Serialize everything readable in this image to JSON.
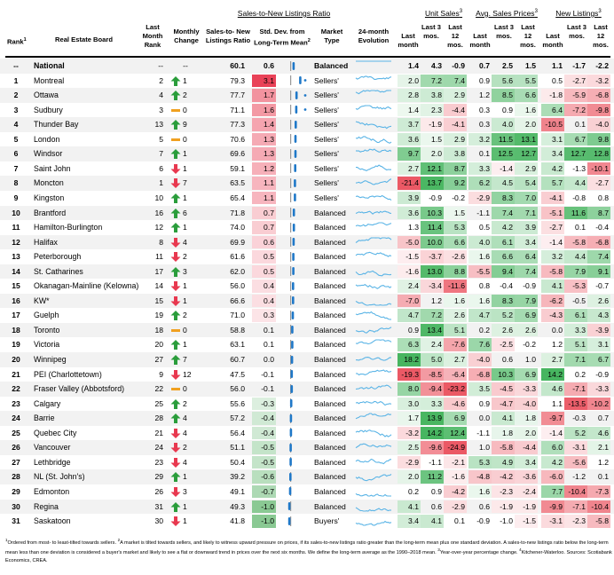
{
  "groups": {
    "ratio": "Sales-to-New Listings Ratio",
    "unit_sales": "Unit Sales",
    "unit_sales_note": "3",
    "prices": "Avg. Sales Prices",
    "prices_note": "3",
    "listings": "New Listings",
    "listings_note": "3"
  },
  "headers": {
    "rank": "Rank",
    "rank_note": "1",
    "board": "Real Estate Board",
    "last_month_rank": "Last Month Rank",
    "monthly_change": "Monthly Change",
    "snlr": "Sales-to- New Listings Ratio",
    "sd": "Std. Dev. from Long-Term Mean",
    "sd_note": "2",
    "market_type": "Market Type",
    "evolution": "24-month Evolution",
    "last_month": "Last month",
    "last3": "Last 3 mos.",
    "last12": "Last 12 mos."
  },
  "colors": {
    "red": "#e8384f",
    "green": "#2a9d3b",
    "orange": "#f0a020",
    "blue": "#1f78c8",
    "spark": "#5ab4e6",
    "pos_scale": "#27a844",
    "neg_scale": "#e83c4a"
  },
  "national": {
    "rank": "--",
    "board": "National",
    "lm_rank": "--",
    "change": "--",
    "ratio": "60.1",
    "sd": "0.6",
    "market": "Balanced",
    "us": [
      "1.4",
      "4.3",
      "-0.9"
    ],
    "pr": [
      "0.7",
      "2.5",
      "1.5"
    ],
    "nl": [
      "1.1",
      "-1.7",
      "-2.2"
    ]
  },
  "chart_data": {
    "type": "table",
    "columns": [
      "Rank",
      "Real Estate Board",
      "Last Month Rank",
      "Monthly Change",
      "Sales-to- New Listings Ratio",
      "Std. Dev. from Long-Term Mean",
      "Market Type",
      "Unit Sales Last month",
      "Unit Sales Last 3 mos.",
      "Unit Sales Last 12 mos.",
      "Avg. Sales Prices Last month",
      "Avg. Sales Prices Last 3 mos.",
      "Avg. Sales Prices Last 12 mos.",
      "New Listings Last month",
      "New Listings Last 3 mos.",
      "New Listings Last 12 mos."
    ],
    "rows": [
      {
        "rank": "1",
        "board": "Montreal",
        "lm": "2",
        "dir": "up",
        "chg": "1",
        "ratio": "79.3",
        "sd": "3.1",
        "market": "Sellers'",
        "us": [
          "2.0",
          "7.2",
          "7.4"
        ],
        "pr": [
          "0.9",
          "5.6",
          "5.5"
        ],
        "nl": [
          "0.5",
          "-2.7",
          "-3.2"
        ]
      },
      {
        "rank": "2",
        "board": "Ottawa",
        "lm": "4",
        "dir": "up",
        "chg": "2",
        "ratio": "77.7",
        "sd": "1.7",
        "market": "Sellers'",
        "us": [
          "2.8",
          "3.8",
          "2.9"
        ],
        "pr": [
          "1.2",
          "8.5",
          "6.6"
        ],
        "nl": [
          "-1.8",
          "-5.9",
          "-6.8"
        ]
      },
      {
        "rank": "3",
        "board": "Sudbury",
        "lm": "3",
        "dir": "flat",
        "chg": "0",
        "ratio": "71.1",
        "sd": "1.6",
        "market": "Sellers'",
        "us": [
          "1.4",
          "2.3",
          "-4.4"
        ],
        "pr": [
          "0.3",
          "0.9",
          "1.6"
        ],
        "nl": [
          "6.4",
          "-7.2",
          "-9.8"
        ]
      },
      {
        "rank": "4",
        "board": "Thunder Bay",
        "lm": "13",
        "dir": "up",
        "chg": "9",
        "ratio": "77.3",
        "sd": "1.4",
        "market": "Sellers'",
        "us": [
          "3.7",
          "-1.9",
          "-4.1"
        ],
        "pr": [
          "0.3",
          "4.0",
          "2.0"
        ],
        "nl": [
          "-10.5",
          "0.1",
          "-4.0"
        ]
      },
      {
        "rank": "5",
        "board": "London",
        "lm": "5",
        "dir": "flat",
        "chg": "0",
        "ratio": "70.6",
        "sd": "1.3",
        "market": "Sellers'",
        "us": [
          "3.6",
          "1.5",
          "2.9"
        ],
        "pr": [
          "3.2",
          "11.5",
          "13.1"
        ],
        "nl": [
          "3.1",
          "6.7",
          "9.8"
        ]
      },
      {
        "rank": "6",
        "board": "Windsor",
        "lm": "7",
        "dir": "up",
        "chg": "1",
        "ratio": "69.6",
        "sd": "1.3",
        "market": "Sellers'",
        "us": [
          "9.7",
          "2.0",
          "3.8"
        ],
        "pr": [
          "0.1",
          "12.5",
          "12.7"
        ],
        "nl": [
          "3.4",
          "12.7",
          "12.8"
        ]
      },
      {
        "rank": "7",
        "board": "Saint John",
        "lm": "6",
        "dir": "down",
        "chg": "1",
        "ratio": "59.1",
        "sd": "1.2",
        "market": "Sellers'",
        "us": [
          "2.7",
          "12.1",
          "8.7"
        ],
        "pr": [
          "3.3",
          "-1.4",
          "2.9"
        ],
        "nl": [
          "4.2",
          "-1.3",
          "-10.1"
        ]
      },
      {
        "rank": "8",
        "board": "Moncton",
        "lm": "1",
        "dir": "down",
        "chg": "7",
        "ratio": "63.5",
        "sd": "1.1",
        "market": "Sellers'",
        "us": [
          "-21.4",
          "13.7",
          "9.2"
        ],
        "pr": [
          "6.2",
          "4.5",
          "5.4"
        ],
        "nl": [
          "5.7",
          "4.4",
          "-2.7"
        ]
      },
      {
        "rank": "9",
        "board": "Kingston",
        "lm": "10",
        "dir": "up",
        "chg": "1",
        "ratio": "65.4",
        "sd": "1.1",
        "market": "Sellers'",
        "us": [
          "3.9",
          "-0.9",
          "-0.2"
        ],
        "pr": [
          "-2.9",
          "8.3",
          "7.0"
        ],
        "nl": [
          "-4.1",
          "-0.8",
          "0.8"
        ]
      },
      {
        "rank": "10",
        "board": "Brantford",
        "lm": "16",
        "dir": "up",
        "chg": "6",
        "ratio": "71.8",
        "sd": "0.7",
        "market": "Balanced",
        "us": [
          "3.6",
          "10.3",
          "1.5"
        ],
        "pr": [
          "-1.1",
          "7.4",
          "7.1"
        ],
        "nl": [
          "-5.1",
          "11.6",
          "8.7"
        ]
      },
      {
        "rank": "11",
        "board": "Hamilton-Burlington",
        "lm": "12",
        "dir": "up",
        "chg": "1",
        "ratio": "74.0",
        "sd": "0.7",
        "market": "Balanced",
        "us": [
          "1.3",
          "11.4",
          "5.3"
        ],
        "pr": [
          "0.5",
          "4.2",
          "3.9"
        ],
        "nl": [
          "-2.7",
          "0.1",
          "-0.4"
        ]
      },
      {
        "rank": "12",
        "board": "Halifax",
        "lm": "8",
        "dir": "down",
        "chg": "4",
        "ratio": "69.9",
        "sd": "0.6",
        "market": "Balanced",
        "us": [
          "-5.0",
          "10.0",
          "6.6"
        ],
        "pr": [
          "4.0",
          "6.1",
          "3.4"
        ],
        "nl": [
          "-1.4",
          "-5.8",
          "-6.8"
        ]
      },
      {
        "rank": "13",
        "board": "Peterborough",
        "lm": "11",
        "dir": "down",
        "chg": "2",
        "ratio": "61.6",
        "sd": "0.5",
        "market": "Balanced",
        "us": [
          "-1.5",
          "-3.7",
          "-2.6"
        ],
        "pr": [
          "1.6",
          "6.6",
          "6.4"
        ],
        "nl": [
          "3.2",
          "4.4",
          "7.4"
        ]
      },
      {
        "rank": "14",
        "board": "St. Catharines",
        "lm": "17",
        "dir": "up",
        "chg": "3",
        "ratio": "62.0",
        "sd": "0.5",
        "market": "Balanced",
        "us": [
          "-1.6",
          "13.0",
          "8.8"
        ],
        "pr": [
          "-5.5",
          "9.4",
          "7.4"
        ],
        "nl": [
          "-5.8",
          "7.9",
          "9.1"
        ]
      },
      {
        "rank": "15",
        "board": "Okanagan-Mainline (Kelowna)",
        "lm": "14",
        "dir": "down",
        "chg": "1",
        "ratio": "56.0",
        "sd": "0.4",
        "market": "Balanced",
        "us": [
          "2.4",
          "-3.4",
          "-11.6"
        ],
        "pr": [
          "0.8",
          "-0.4",
          "-0.9"
        ],
        "nl": [
          "4.1",
          "-5.3",
          "-0.7"
        ]
      },
      {
        "rank": "16",
        "board": "KW*",
        "lm": "15",
        "dir": "down",
        "chg": "1",
        "ratio": "66.6",
        "sd": "0.4",
        "market": "Balanced",
        "us": [
          "-7.0",
          "1.2",
          "1.6"
        ],
        "pr": [
          "1.6",
          "8.3",
          "7.9"
        ],
        "nl": [
          "-6.2",
          "-0.5",
          "2.6"
        ]
      },
      {
        "rank": "17",
        "board": "Guelph",
        "lm": "19",
        "dir": "up",
        "chg": "2",
        "ratio": "71.0",
        "sd": "0.3",
        "market": "Balanced",
        "us": [
          "4.7",
          "7.2",
          "2.6"
        ],
        "pr": [
          "4.7",
          "5.2",
          "6.9"
        ],
        "nl": [
          "-4.3",
          "6.1",
          "4.3"
        ]
      },
      {
        "rank": "18",
        "board": "Toronto",
        "lm": "18",
        "dir": "flat",
        "chg": "0",
        "ratio": "58.8",
        "sd": "0.1",
        "market": "Balanced",
        "us": [
          "0.9",
          "13.4",
          "5.1"
        ],
        "pr": [
          "0.2",
          "2.6",
          "2.6"
        ],
        "nl": [
          "0.0",
          "3.3",
          "-3.9"
        ]
      },
      {
        "rank": "19",
        "board": "Victoria",
        "lm": "20",
        "dir": "up",
        "chg": "1",
        "ratio": "63.1",
        "sd": "0.1",
        "market": "Balanced",
        "us": [
          "6.3",
          "2.4",
          "-7.6"
        ],
        "pr": [
          "7.6",
          "-2.5",
          "-0.2"
        ],
        "nl": [
          "1.2",
          "5.1",
          "3.1"
        ]
      },
      {
        "rank": "20",
        "board": "Winnipeg",
        "lm": "27",
        "dir": "up",
        "chg": "7",
        "ratio": "60.7",
        "sd": "0.0",
        "market": "Balanced",
        "us": [
          "18.2",
          "5.0",
          "2.7"
        ],
        "pr": [
          "-4.0",
          "0.6",
          "1.0"
        ],
        "nl": [
          "2.7",
          "7.1",
          "6.7"
        ]
      },
      {
        "rank": "21",
        "board": "PEI (Charlottetown)",
        "lm": "9",
        "dir": "down",
        "chg": "12",
        "ratio": "47.5",
        "sd": "-0.1",
        "market": "Balanced",
        "us": [
          "-19.3",
          "-8.5",
          "-6.4"
        ],
        "pr": [
          "-6.8",
          "10.3",
          "6.9"
        ],
        "nl": [
          "14.2",
          "0.2",
          "-0.9"
        ]
      },
      {
        "rank": "22",
        "board": "Fraser Valley (Abbotsford)",
        "lm": "22",
        "dir": "flat",
        "chg": "0",
        "ratio": "56.0",
        "sd": "-0.1",
        "market": "Balanced",
        "us": [
          "8.0",
          "-9.4",
          "-23.2"
        ],
        "pr": [
          "3.5",
          "-4.5",
          "-3.3"
        ],
        "nl": [
          "4.6",
          "-7.1",
          "-3.3"
        ]
      },
      {
        "rank": "23",
        "board": "Calgary",
        "lm": "25",
        "dir": "up",
        "chg": "2",
        "ratio": "55.6",
        "sd": "-0.3",
        "market": "Balanced",
        "us": [
          "3.0",
          "3.3",
          "-4.6"
        ],
        "pr": [
          "0.9",
          "-4.7",
          "-4.0"
        ],
        "nl": [
          "1.1",
          "-13.5",
          "-10.2"
        ]
      },
      {
        "rank": "24",
        "board": "Barrie",
        "lm": "28",
        "dir": "up",
        "chg": "4",
        "ratio": "57.2",
        "sd": "-0.4",
        "market": "Balanced",
        "us": [
          "1.7",
          "13.9",
          "6.9"
        ],
        "pr": [
          "0.0",
          "4.1",
          "1.8"
        ],
        "nl": [
          "-9.7",
          "-0.3",
          "0.7"
        ]
      },
      {
        "rank": "25",
        "board": "Quebec City",
        "lm": "21",
        "dir": "down",
        "chg": "4",
        "ratio": "56.4",
        "sd": "-0.4",
        "market": "Balanced",
        "us": [
          "-3.2",
          "14.2",
          "12.4"
        ],
        "pr": [
          "-1.1",
          "1.8",
          "2.0"
        ],
        "nl": [
          "-1.4",
          "5.2",
          "4.6"
        ]
      },
      {
        "rank": "26",
        "board": "Vancouver",
        "lm": "24",
        "dir": "down",
        "chg": "2",
        "ratio": "51.1",
        "sd": "-0.5",
        "market": "Balanced",
        "us": [
          "2.5",
          "-9.6",
          "-24.9"
        ],
        "pr": [
          "1.0",
          "-5.8",
          "-4.4"
        ],
        "nl": [
          "6.0",
          "-3.1",
          "2.1"
        ]
      },
      {
        "rank": "27",
        "board": "Lethbridge",
        "lm": "23",
        "dir": "down",
        "chg": "4",
        "ratio": "50.4",
        "sd": "-0.5",
        "market": "Balanced",
        "us": [
          "-2.9",
          "-1.1",
          "-2.1"
        ],
        "pr": [
          "5.3",
          "4.9",
          "3.4"
        ],
        "nl": [
          "4.2",
          "-5.6",
          "1.2"
        ]
      },
      {
        "rank": "28",
        "board": "NL (St. John's)",
        "lm": "29",
        "dir": "up",
        "chg": "1",
        "ratio": "39.2",
        "sd": "-0.6",
        "market": "Balanced",
        "us": [
          "2.0",
          "11.2",
          "-1.6"
        ],
        "pr": [
          "-4.8",
          "-4.2",
          "-3.6"
        ],
        "nl": [
          "-6.0",
          "-1.2",
          "0.1"
        ]
      },
      {
        "rank": "29",
        "board": "Edmonton",
        "lm": "26",
        "dir": "down",
        "chg": "3",
        "ratio": "49.1",
        "sd": "-0.7",
        "market": "Balanced",
        "us": [
          "0.2",
          "0.9",
          "-4.2"
        ],
        "pr": [
          "1.6",
          "-2.3",
          "-2.4"
        ],
        "nl": [
          "7.7",
          "-10.4",
          "-7.3"
        ]
      },
      {
        "rank": "30",
        "board": "Regina",
        "lm": "31",
        "dir": "up",
        "chg": "1",
        "ratio": "49.3",
        "sd": "-1.0",
        "market": "Balanced",
        "us": [
          "4.1",
          "0.6",
          "-2.9"
        ],
        "pr": [
          "0.6",
          "-1.9",
          "-1.9"
        ],
        "nl": [
          "-9.9",
          "-7.1",
          "-10.4"
        ]
      },
      {
        "rank": "31",
        "board": "Saskatoon",
        "lm": "30",
        "dir": "down",
        "chg": "1",
        "ratio": "41.8",
        "sd": "-1.0",
        "market": "Buyers'",
        "us": [
          "3.4",
          "4.1",
          "0.1"
        ],
        "pr": [
          "-0.9",
          "-1.0",
          "-1.5"
        ],
        "nl": [
          "-3.1",
          "-2.3",
          "-5.8"
        ]
      }
    ]
  },
  "footnote": {
    "n1": "1",
    "t1": "Ordered from most- to least-tilted towards sellers.",
    "n2": "2",
    "t2": "A market is tilted towards sellers, and likely to witness upward pressure on prices, if its sales-to-new listings ratio greater than the long-term mean plus one standard deviation. A sales-to-new listings ratio below the long-term mean less than one deviation is considered a buyer's market and likely to see a flat or downward trend in prices over the next six months. We define the long-term average as the 1990–2018 mean.",
    "n3": "3",
    "t3": "Year-over-year percentage change.",
    "n4": "4",
    "t4": "Kitchener-Waterloo. Sources: Scotiabank Economics, CREA."
  }
}
